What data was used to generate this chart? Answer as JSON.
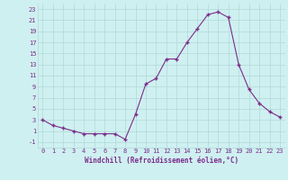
{
  "x": [
    0,
    1,
    2,
    3,
    4,
    5,
    6,
    7,
    8,
    9,
    10,
    11,
    12,
    13,
    14,
    15,
    16,
    17,
    18,
    19,
    20,
    21,
    22,
    23
  ],
  "y": [
    3,
    2,
    1.5,
    1,
    0.5,
    0.5,
    0.5,
    0.5,
    -0.5,
    4,
    9.5,
    10.5,
    14,
    14,
    17,
    19.5,
    22,
    22.5,
    21.5,
    13,
    8.5,
    6,
    4.5,
    3.5
  ],
  "line_color": "#7b2d8b",
  "bg_color": "#cff0f0",
  "grid_color": "#b0d8d8",
  "xlabel": "Windchill (Refroidissement éolien,°C)",
  "xlabel_fontsize": 5.5,
  "tick_fontsize": 5.0,
  "xlim": [
    -0.5,
    23.5
  ],
  "ylim": [
    -2,
    24
  ],
  "yticks": [
    -1,
    1,
    3,
    5,
    7,
    9,
    11,
    13,
    15,
    17,
    19,
    21,
    23
  ],
  "xticks": [
    0,
    1,
    2,
    3,
    4,
    5,
    6,
    7,
    8,
    9,
    10,
    11,
    12,
    13,
    14,
    15,
    16,
    17,
    18,
    19,
    20,
    21,
    22,
    23
  ]
}
